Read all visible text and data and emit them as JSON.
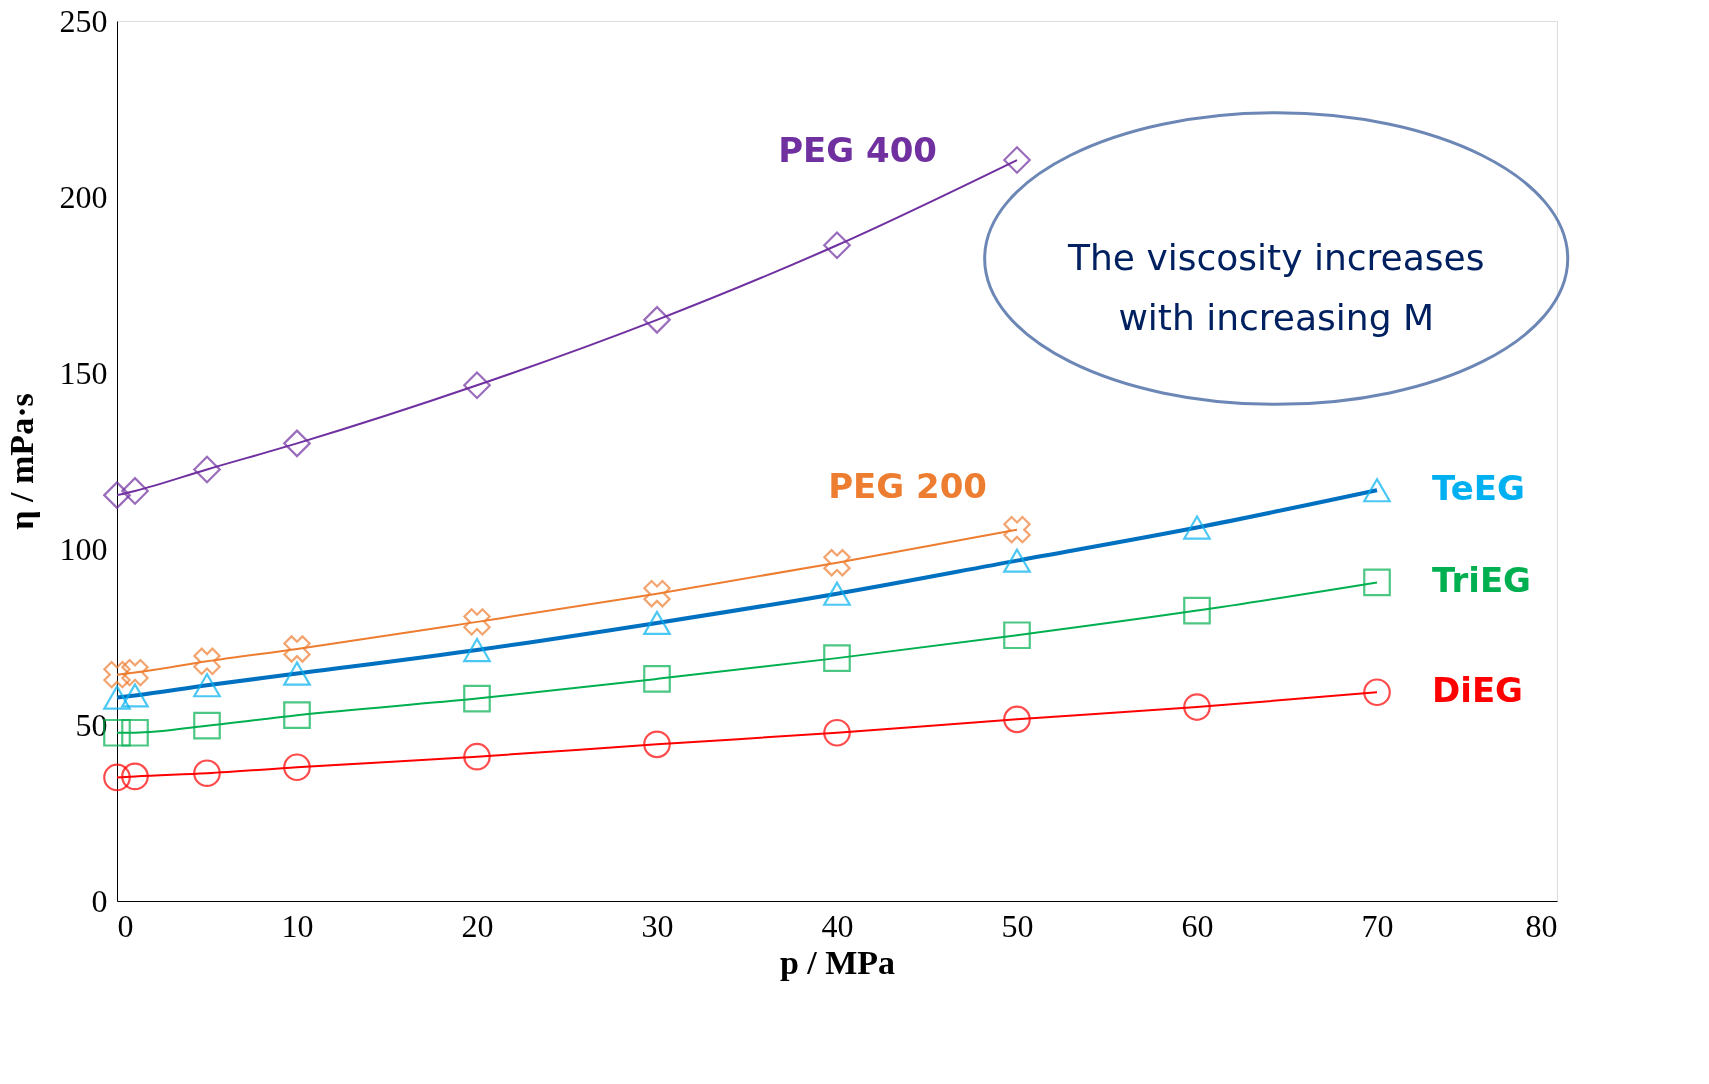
{
  "chart_data": {
    "type": "line",
    "xlabel": "p / MPa",
    "ylabel": "η / mPa·s",
    "xlim": [
      0,
      80
    ],
    "xticks": [
      0,
      10,
      20,
      30,
      40,
      50,
      60,
      70,
      80
    ],
    "ylim": [
      0,
      250
    ],
    "yticks": [
      0,
      50,
      100,
      150,
      200,
      250
    ],
    "grid": false,
    "legend": false,
    "series": [
      {
        "name": "PEG 400",
        "color": "#7030a0",
        "marker": "diamond",
        "x": [
          0,
          1,
          5,
          10,
          20,
          30,
          40,
          50
        ],
        "values": [
          115.3,
          116.5,
          122.6,
          130,
          146.5,
          165.1,
          186.3,
          210.5
        ]
      },
      {
        "name": "PEG 200",
        "color": "#ed7d31",
        "marker": "cross",
        "x": [
          0,
          1,
          5,
          10,
          20,
          30,
          40,
          50
        ],
        "values": [
          64.3,
          64.9,
          68.1,
          71.6,
          79.3,
          87.3,
          96.1,
          105.5
        ]
      },
      {
        "type": "line",
        "color": "#0070c0",
        "marker": "none",
        "x": [
          0,
          1,
          5,
          10,
          20,
          30,
          40,
          50,
          60,
          70
        ],
        "values": [
          57.8,
          58.4,
          61.3,
          64.6,
          71.3,
          79.0,
          87.3,
          96.7,
          106.1,
          116.7
        ]
      },
      {
        "name": "TeEG",
        "type": "scatter",
        "color": "#00b0f0",
        "marker": "triangle",
        "x": [
          0,
          1,
          5,
          10,
          20,
          30,
          40,
          50,
          60,
          70
        ],
        "values": [
          57.8,
          58.4,
          61.3,
          64.6,
          71.3,
          79.0,
          87.3,
          96.7,
          106.1,
          116.7
        ]
      },
      {
        "name": "TriEG",
        "color": "#00b050",
        "marker": "square",
        "x": [
          0,
          1,
          5,
          10,
          20,
          30,
          40,
          50,
          60,
          70
        ],
        "values": [
          47.8,
          47.8,
          49.8,
          52.8,
          57.5,
          63.1,
          69.0,
          75.5,
          82.5,
          90.5
        ]
      },
      {
        "name": "DiEG",
        "color": "#ff0000",
        "marker": "circle",
        "x": [
          0,
          1,
          5,
          10,
          20,
          30,
          40,
          50,
          60,
          70
        ],
        "values": [
          35.1,
          35.4,
          36.3,
          38.0,
          41.0,
          44.5,
          47.8,
          51.6,
          55.1,
          59.3
        ]
      }
    ],
    "annotations": [
      "The viscosity increases\nwith increasing M"
    ]
  }
}
